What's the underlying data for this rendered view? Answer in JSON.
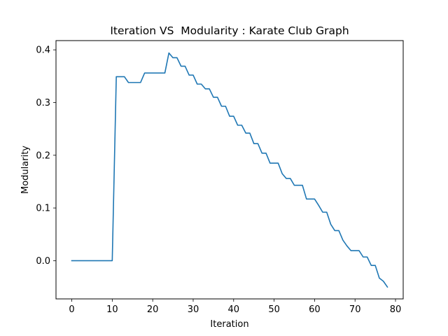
{
  "chart_data": {
    "type": "line",
    "title": "Iteration VS  Modularity : Karate Club Graph",
    "xlabel": "Iteration",
    "ylabel": "Modularity",
    "xlim": [
      -3.9,
      81.9
    ],
    "ylim": [
      -0.0725,
      0.4175
    ],
    "xticks": [
      0,
      10,
      20,
      30,
      40,
      50,
      60,
      70,
      80
    ],
    "yticks": [
      0.0,
      0.1,
      0.2,
      0.3,
      0.4
    ],
    "grid": false,
    "series": [
      {
        "color": "#1f77b4",
        "x": [
          0,
          1,
          2,
          3,
          4,
          5,
          6,
          7,
          8,
          9,
          10,
          11,
          12,
          13,
          14,
          15,
          16,
          17,
          18,
          19,
          20,
          21,
          22,
          23,
          24,
          25,
          26,
          27,
          28,
          29,
          30,
          31,
          32,
          33,
          34,
          35,
          36,
          37,
          38,
          39,
          40,
          41,
          42,
          43,
          44,
          45,
          46,
          47,
          48,
          49,
          50,
          51,
          52,
          53,
          54,
          55,
          56,
          57,
          58,
          59,
          60,
          61,
          62,
          63,
          64,
          65,
          66,
          67,
          68,
          69,
          70,
          71,
          72,
          73,
          74,
          75,
          76,
          77,
          78
        ],
        "values": [
          0,
          0,
          0,
          0,
          0,
          0,
          0,
          0,
          0,
          0,
          0,
          0.349,
          0.349,
          0.349,
          0.338,
          0.338,
          0.338,
          0.338,
          0.356,
          0.356,
          0.356,
          0.356,
          0.356,
          0.356,
          0.394,
          0.385,
          0.385,
          0.369,
          0.369,
          0.352,
          0.352,
          0.335,
          0.335,
          0.326,
          0.326,
          0.31,
          0.31,
          0.293,
          0.293,
          0.274,
          0.274,
          0.257,
          0.257,
          0.242,
          0.242,
          0.222,
          0.222,
          0.204,
          0.204,
          0.185,
          0.185,
          0.185,
          0.165,
          0.156,
          0.156,
          0.143,
          0.143,
          0.143,
          0.117,
          0.117,
          0.117,
          0.105,
          0.092,
          0.092,
          0.069,
          0.057,
          0.057,
          0.039,
          0.028,
          0.019,
          0.019,
          0.019,
          0.007,
          0.007,
          -0.009,
          -0.009,
          -0.033,
          -0.039,
          -0.05
        ]
      }
    ]
  }
}
